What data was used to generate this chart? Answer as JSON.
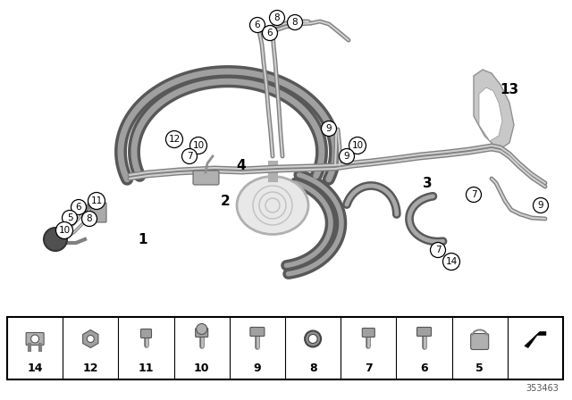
{
  "bg_color": "#ffffff",
  "ref_number": "353463",
  "line_dark": "#707070",
  "line_mid": "#909090",
  "line_light": "#c0c0c0",
  "hose_dark": "#686868",
  "hose_mid": "#909090",
  "hose_light": "#b8b8b8"
}
